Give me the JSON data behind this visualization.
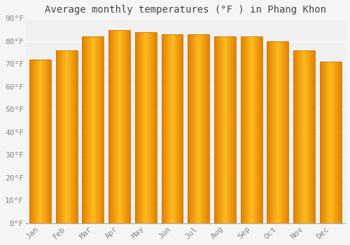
{
  "title": "Average monthly temperatures (°F ) in Phang Khon",
  "categories": [
    "Jan",
    "Feb",
    "Mar",
    "Apr",
    "May",
    "Jun",
    "Jul",
    "Aug",
    "Sep",
    "Oct",
    "Nov",
    "Dec"
  ],
  "values": [
    72,
    76,
    82,
    85,
    84,
    83,
    83,
    82,
    82,
    80,
    76,
    71
  ],
  "bar_color_center": "#FFB833",
  "bar_color_edge": "#E08000",
  "background_color": "#F5F5F5",
  "plot_bg_color": "#F0F0F0",
  "ylim": [
    0,
    90
  ],
  "yticks": [
    0,
    10,
    20,
    30,
    40,
    50,
    60,
    70,
    80,
    90
  ],
  "ytick_labels": [
    "0°F",
    "10°F",
    "20°F",
    "30°F",
    "40°F",
    "50°F",
    "60°F",
    "70°F",
    "80°F",
    "90°F"
  ],
  "grid_color": "#ffffff",
  "tick_color": "#888888",
  "title_fontsize": 10,
  "tick_fontsize": 8,
  "font_family": "monospace",
  "bar_width": 0.82
}
